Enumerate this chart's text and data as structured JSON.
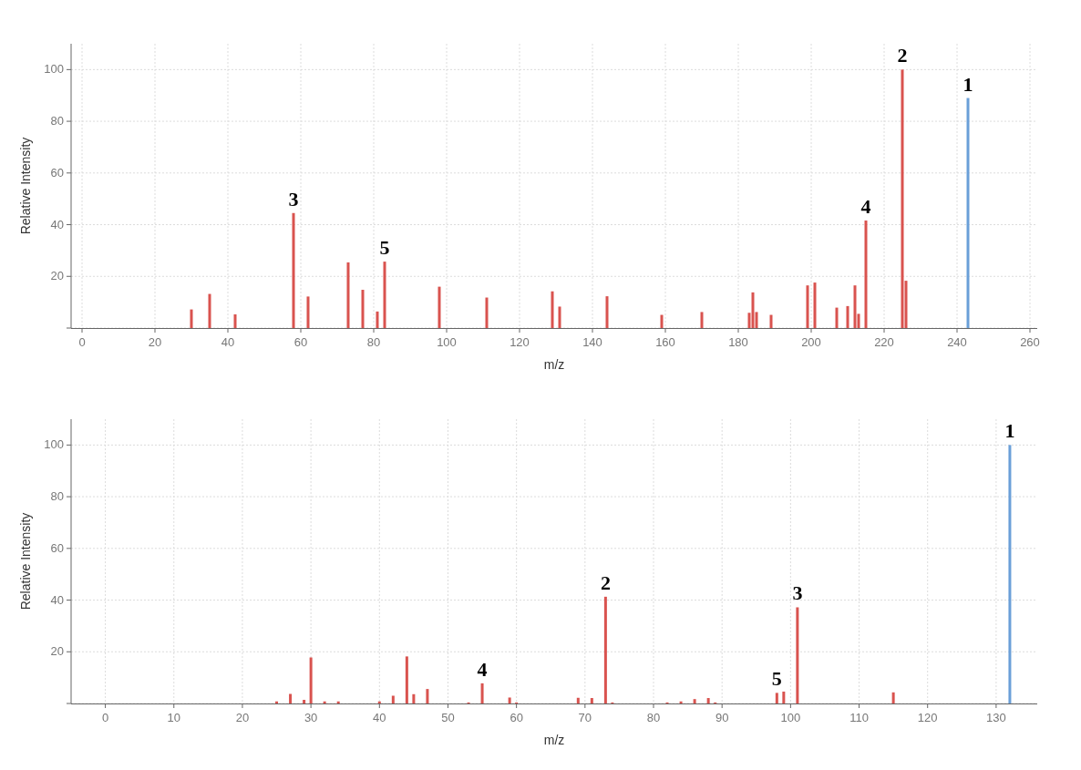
{
  "chart_data": [
    {
      "type": "bar",
      "xlabel": "m/z",
      "ylabel": "Relative Intensity",
      "xlim": [
        -3,
        262
      ],
      "ylim": [
        0,
        110
      ],
      "xticks": [
        0,
        20,
        40,
        60,
        80,
        100,
        120,
        140,
        160,
        180,
        200,
        220,
        240,
        260
      ],
      "yticks": [
        {
          "value": 0,
          "label": null
        },
        20,
        40,
        60,
        80,
        100
      ],
      "grid": true,
      "series": [
        {
          "color": "#d9534f",
          "x": [
            30,
            35,
            42,
            58,
            62,
            73,
            77,
            81,
            83,
            98,
            111,
            129,
            131,
            144,
            159,
            170,
            183,
            184,
            185,
            189,
            199,
            201,
            207,
            210,
            212,
            213,
            215,
            225,
            226
          ],
          "values": [
            7.2,
            13.2,
            5.3,
            44.5,
            12.2,
            25.4,
            14.8,
            6.4,
            25.7,
            16,
            11.8,
            14.2,
            8.3,
            12.3,
            5.1,
            6.2,
            5.9,
            13.8,
            6.2,
            5.1,
            16.5,
            17.6,
            7.9,
            8.5,
            16.5,
            5.5,
            41.6,
            100,
            18.3
          ]
        },
        {
          "color": "#6a9fd8",
          "x": [
            243
          ],
          "values": [
            89
          ]
        }
      ],
      "annotations": [
        {
          "text": "1",
          "x": 243,
          "y": 89
        },
        {
          "text": "2",
          "x": 225,
          "y": 100
        },
        {
          "text": "3",
          "x": 58,
          "y": 44.5
        },
        {
          "text": "4",
          "x": 215,
          "y": 41.6
        },
        {
          "text": "5",
          "x": 83,
          "y": 25.7
        }
      ]
    },
    {
      "type": "bar",
      "xlabel": "m/z",
      "ylabel": "Relative Intensity",
      "xlim": [
        -5,
        136
      ],
      "ylim": [
        0,
        110
      ],
      "xticks": [
        0,
        10,
        20,
        30,
        40,
        50,
        60,
        70,
        80,
        90,
        100,
        110,
        120,
        130
      ],
      "yticks": [
        {
          "value": 0,
          "label": null
        },
        20,
        40,
        60,
        80,
        100
      ],
      "grid": true,
      "series": [
        {
          "color": "#d9534f",
          "x": [
            25,
            27,
            29,
            30,
            32,
            34,
            40,
            42,
            44,
            45,
            47,
            53,
            55,
            59,
            60,
            69,
            71,
            73,
            74,
            82,
            84,
            86,
            88,
            89,
            98,
            99,
            101,
            115
          ],
          "values": [
            0.8,
            3.7,
            1.4,
            17.8,
            0.8,
            0.8,
            0.8,
            3,
            18.2,
            3.6,
            5.6,
            0.4,
            7.8,
            2.3,
            0.4,
            2.2,
            2.1,
            41.3,
            0.4,
            0.4,
            0.8,
            1.7,
            2.1,
            0.4,
            4.1,
            4.6,
            37.2,
            4.3
          ]
        },
        {
          "color": "#6a9fd8",
          "x": [
            132
          ],
          "values": [
            100
          ]
        }
      ],
      "annotations": [
        {
          "text": "1",
          "x": 132,
          "y": 100
        },
        {
          "text": "2",
          "x": 73,
          "y": 41.3
        },
        {
          "text": "3",
          "x": 101,
          "y": 37.2
        },
        {
          "text": "4",
          "x": 55,
          "y": 7.8
        },
        {
          "text": "5",
          "x": 98,
          "y": 4.1
        }
      ]
    }
  ]
}
